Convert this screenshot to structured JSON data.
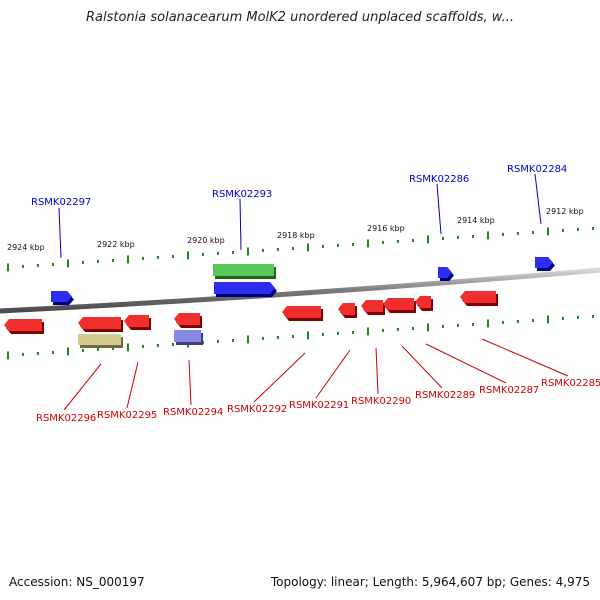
{
  "title": "Ralstonia solanacearum MolK2 unordered unplaced scaffolds, w...",
  "footer": {
    "accession": "Accession: NS_000197",
    "summary": "Topology: linear; Length: 5,964,607 bp; Genes: 4,975"
  },
  "colors": {
    "backbone": "#8c8c8c",
    "tick": "#1a8a1a",
    "forward_gene": "#0000ee",
    "reverse_gene": "#ee0000",
    "forward_label": "#0000cc",
    "reverse_label": "#cc0000",
    "highlight_green": "#33bb33",
    "highlight_olive": "#c8c07a",
    "highlight_purple": "#7070e0"
  },
  "scale_labels": [
    "2924 kbp",
    "2922 kbp",
    "2920 kbp",
    "2918 kbp",
    "2916 kbp",
    "2914 kbp",
    "2912 kbp"
  ],
  "forward_gene_labels": [
    "RSMK02297",
    "RSMK02293",
    "RSMK02286",
    "RSMK02284"
  ],
  "reverse_gene_labels": [
    "RSMK02296",
    "RSMK02295",
    "RSMK02294",
    "RSMK02292",
    "RSMK02291",
    "RSMK02290",
    "RSMK02289",
    "RSMK02287",
    "RSMK02285"
  ]
}
